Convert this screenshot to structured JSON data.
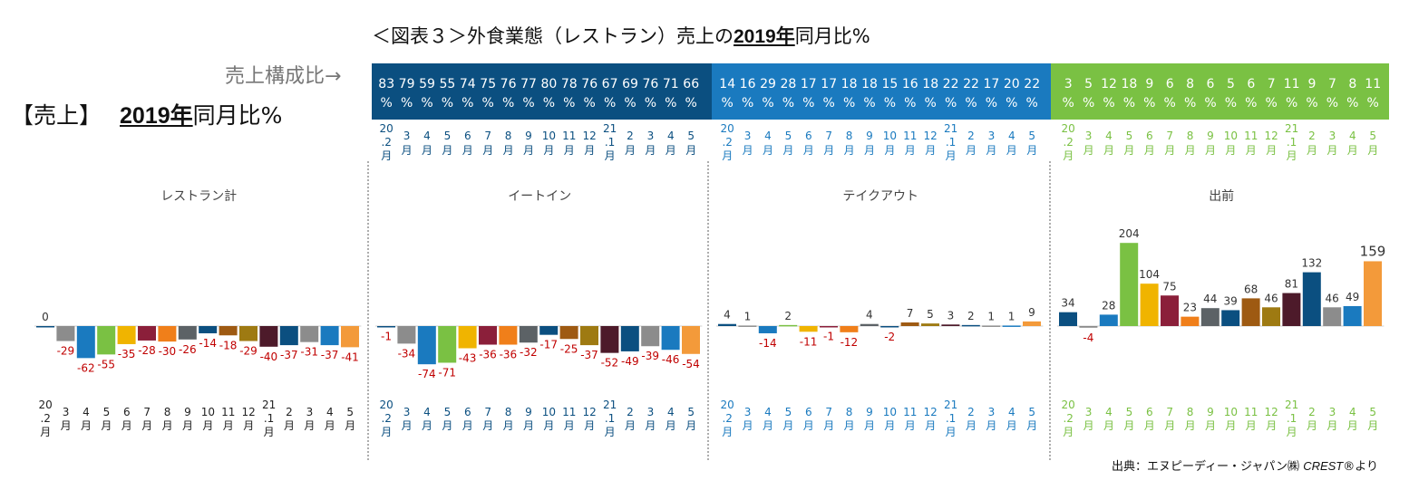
{
  "header": {
    "title_prefix": "＜図表３＞外食業態（レストラン）売上の",
    "title_bold": "2019年",
    "title_suffix": "同月比%",
    "composition_label": "売上構成比→",
    "left_title_bracket": "【売上】",
    "left_title_bold": "2019年",
    "left_title_suffix": "同月比%",
    "source": "出典：エヌピーディー・ジャパン㈱ CREST®より"
  },
  "month_labels": [
    "20.2月",
    "3月",
    "4月",
    "5月",
    "6月",
    "7月",
    "8月",
    "9月",
    "10月",
    "11月",
    "12月",
    "21.1月",
    "2月",
    "3月",
    "4月",
    "5月"
  ],
  "colors": {
    "band_dark": "#0b4f80",
    "band_mid": "#1a7abf",
    "band_green": "#7ac143",
    "bar_colors": [
      "#0b4f80",
      "#8c8c8c",
      "#1a7abf",
      "#7ac143",
      "#f0b400",
      "#8b1f3a",
      "#f07f1a",
      "#5c6266",
      "#0b4f80",
      "#9e5a12",
      "#9e7a12",
      "#4d1a2a",
      "#0b4f80",
      "#8c8c8c",
      "#1a7abf",
      "#f39a3a"
    ],
    "label_negative": "#c00000",
    "label_positive": "#333333"
  },
  "chart_data": [
    {
      "type": "bar",
      "panel_title": "レストラン計",
      "composition": [],
      "values": [
        0,
        -29,
        -62,
        -55,
        -35,
        -28,
        -30,
        -26,
        -14,
        -18,
        -29,
        -40,
        -37,
        -31,
        -37,
        -41
      ]
    },
    {
      "type": "bar",
      "panel_title": "イートイン",
      "composition": [
        "83%",
        "79%",
        "59%",
        "55%",
        "74%",
        "75%",
        "76%",
        "77%",
        "80%",
        "78%",
        "76%",
        "67%",
        "69%",
        "76%",
        "71%",
        "66%"
      ],
      "values": [
        -1,
        -34,
        -74,
        -71,
        -43,
        -36,
        -36,
        -32,
        -17,
        -25,
        -37,
        -52,
        -49,
        -39,
        -46,
        -54
      ]
    },
    {
      "type": "bar",
      "panel_title": "テイクアウト",
      "composition": [
        "14%",
        "16%",
        "29%",
        "28%",
        "17%",
        "17%",
        "18%",
        "18%",
        "15%",
        "16%",
        "18%",
        "22%",
        "22%",
        "17%",
        "20%",
        "22%"
      ],
      "values": [
        4,
        1,
        -14,
        2,
        -11,
        -1,
        -12,
        4,
        -2,
        7,
        5,
        3,
        2,
        1,
        1,
        9
      ]
    },
    {
      "type": "bar",
      "panel_title": "出前",
      "composition": [
        "3%",
        "5%",
        "12%",
        "18%",
        "9%",
        "6%",
        "8%",
        "6%",
        "5%",
        "6%",
        "7%",
        "11%",
        "9%",
        "7%",
        "8%",
        "11%"
      ],
      "values": [
        34,
        -4,
        28,
        204,
        104,
        75,
        23,
        44,
        39,
        68,
        46,
        81,
        132,
        46,
        49,
        159
      ]
    }
  ]
}
